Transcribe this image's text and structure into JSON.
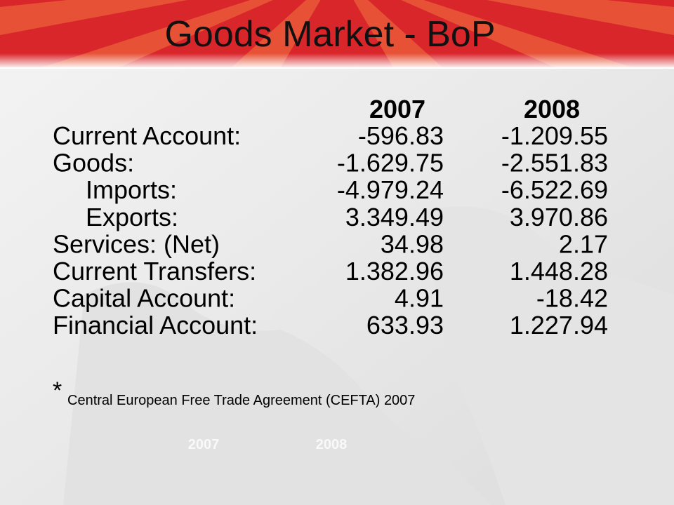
{
  "title": "Goods Market - BoP",
  "table": {
    "header": [
      "2007",
      "2008"
    ],
    "rows": [
      [
        "Current Account:",
        "-596.83",
        "-1.209.55"
      ],
      [
        "Goods:",
        "-1.629.75",
        "-2.551.83"
      ],
      [
        "Imports:",
        "-4.979.24",
        "-6.522.69"
      ],
      [
        "Exports:",
        "3.349.49",
        "3.970.86"
      ],
      [
        "Services: (Net)",
        "34.98",
        "2.17"
      ],
      [
        "Current Transfers:",
        "1.382.96",
        "1.448.28"
      ],
      [
        "Capital Account:",
        "4.91",
        "-18.42"
      ],
      [
        "Financial Account:",
        "633.93",
        "1.227.94"
      ]
    ]
  },
  "footnote": {
    "mark": "*",
    "text": "Central European Free Trade Agreement (CEFTA) 2007"
  },
  "background_labels": [
    "2007",
    "2008"
  ]
}
